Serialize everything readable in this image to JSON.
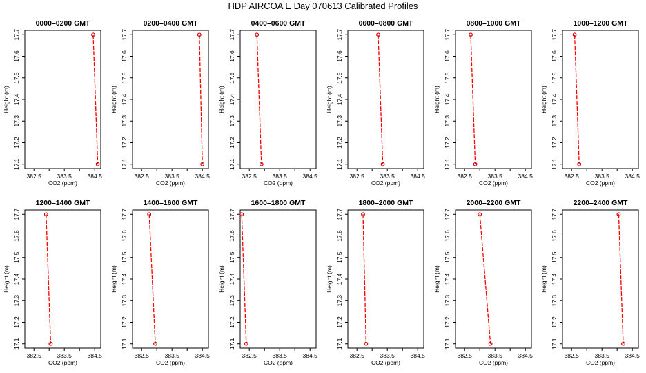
{
  "title": "HDP  AIRCOA E  Day 070613  Calibrated Profiles",
  "axis_defaults": {
    "xlabel": "CO2 (ppm)",
    "ylabel": "Height (m)",
    "xlim": [
      382.2,
      384.7
    ],
    "ylim": [
      17.08,
      17.72
    ],
    "xticks": [
      "382.5",
      "383.5",
      "384.5"
    ],
    "xtick_values": [
      382.5,
      383.0,
      383.5,
      384.0,
      384.5
    ],
    "yticks": [
      "17.1",
      "17.2",
      "17.3",
      "17.4",
      "17.5",
      "17.6",
      "17.7"
    ],
    "ytick_values": [
      17.1,
      17.2,
      17.3,
      17.4,
      17.5,
      17.6,
      17.7
    ]
  },
  "colors": {
    "line": "#ff0000",
    "marker": "#cc0000",
    "frame": "#000000"
  },
  "chart_data": [
    {
      "type": "line",
      "title": "0000–0200 GMT",
      "xlabel": "CO2 (ppm)",
      "ylabel": "Height (m)",
      "xlim": [
        382.2,
        384.7
      ],
      "ylim": [
        17.08,
        17.72
      ],
      "x": [
        384.45,
        384.6
      ],
      "y": [
        17.7,
        17.1
      ]
    },
    {
      "type": "line",
      "title": "0200–0400 GMT",
      "xlabel": "CO2 (ppm)",
      "ylabel": "Height (m)",
      "xlim": [
        382.2,
        384.7
      ],
      "ylim": [
        17.08,
        17.72
      ],
      "x": [
        384.4,
        384.5
      ],
      "y": [
        17.7,
        17.1
      ]
    },
    {
      "type": "line",
      "title": "0400–0600 GMT",
      "xlabel": "CO2 (ppm)",
      "ylabel": "Height (m)",
      "xlim": [
        382.2,
        384.7
      ],
      "ylim": [
        17.08,
        17.72
      ],
      "x": [
        382.75,
        382.9
      ],
      "y": [
        17.7,
        17.1
      ]
    },
    {
      "type": "line",
      "title": "0600–0800 GMT",
      "xlabel": "CO2 (ppm)",
      "ylabel": "Height (m)",
      "xlim": [
        382.2,
        384.7
      ],
      "ylim": [
        17.08,
        17.72
      ],
      "x": [
        383.2,
        383.35
      ],
      "y": [
        17.7,
        17.1
      ]
    },
    {
      "type": "line",
      "title": "0800–1000 GMT",
      "xlabel": "CO2 (ppm)",
      "ylabel": "Height (m)",
      "xlim": [
        382.2,
        384.7
      ],
      "ylim": [
        17.08,
        17.72
      ],
      "x": [
        382.7,
        382.85
      ],
      "y": [
        17.7,
        17.1
      ]
    },
    {
      "type": "line",
      "title": "1000–1200 GMT",
      "xlabel": "CO2 (ppm)",
      "ylabel": "Height (m)",
      "xlim": [
        382.2,
        384.7
      ],
      "ylim": [
        17.08,
        17.72
      ],
      "x": [
        382.6,
        382.75
      ],
      "y": [
        17.7,
        17.1
      ]
    },
    {
      "type": "line",
      "title": "1200–1400 GMT",
      "xlabel": "CO2 (ppm)",
      "ylabel": "Height (m)",
      "xlim": [
        382.2,
        384.7
      ],
      "ylim": [
        17.08,
        17.72
      ],
      "x": [
        382.9,
        383.05
      ],
      "y": [
        17.7,
        17.1
      ]
    },
    {
      "type": "line",
      "title": "1400–1600 GMT",
      "xlabel": "CO2 (ppm)",
      "ylabel": "Height (m)",
      "xlim": [
        382.2,
        384.7
      ],
      "ylim": [
        17.08,
        17.72
      ],
      "x": [
        382.75,
        382.95
      ],
      "y": [
        17.7,
        17.1
      ]
    },
    {
      "type": "line",
      "title": "1600–1800 GMT",
      "xlabel": "CO2 (ppm)",
      "ylabel": "Height (m)",
      "xlim": [
        382.2,
        384.7
      ],
      "ylim": [
        17.08,
        17.72
      ],
      "x": [
        382.25,
        382.4
      ],
      "y": [
        17.7,
        17.1
      ]
    },
    {
      "type": "line",
      "title": "1800–2000 GMT",
      "xlabel": "CO2 (ppm)",
      "ylabel": "Height (m)",
      "xlim": [
        382.2,
        384.7
      ],
      "ylim": [
        17.08,
        17.72
      ],
      "x": [
        382.7,
        382.8
      ],
      "y": [
        17.7,
        17.1
      ]
    },
    {
      "type": "line",
      "title": "2000–2200 GMT",
      "xlabel": "CO2 (ppm)",
      "ylabel": "Height (m)",
      "xlim": [
        382.2,
        384.7
      ],
      "ylim": [
        17.08,
        17.72
      ],
      "x": [
        383.0,
        383.35
      ],
      "y": [
        17.7,
        17.1
      ]
    },
    {
      "type": "line",
      "title": "2200–2400 GMT",
      "xlabel": "CO2 (ppm)",
      "ylabel": "Height (m)",
      "xlim": [
        382.2,
        384.7
      ],
      "ylim": [
        17.08,
        17.72
      ],
      "x": [
        384.05,
        384.2
      ],
      "y": [
        17.7,
        17.1
      ]
    }
  ]
}
